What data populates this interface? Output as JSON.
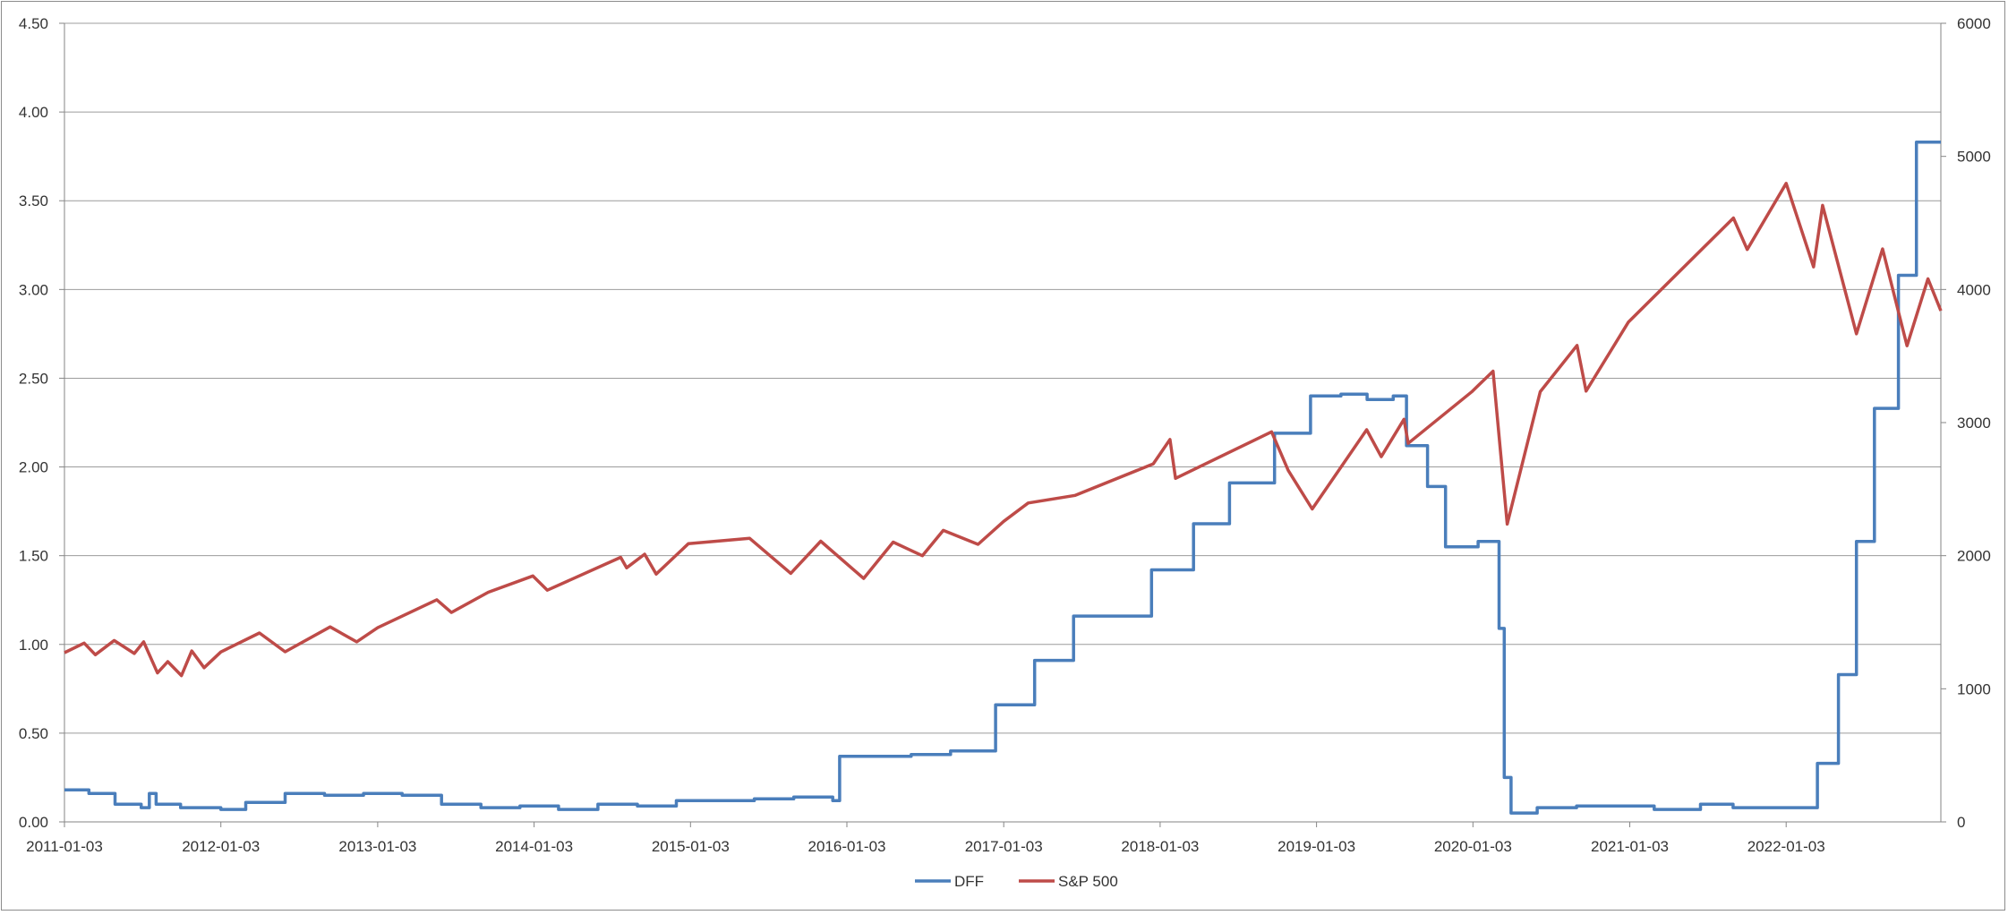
{
  "chart_data": {
    "type": "line",
    "title": "",
    "xlabel": "",
    "ylabel_left": "",
    "ylabel_right": "",
    "x_tick_labels": [
      "2011-01-03",
      "2012-01-03",
      "2013-01-03",
      "2014-01-03",
      "2015-01-03",
      "2016-01-03",
      "2017-01-03",
      "2018-01-03",
      "2019-01-03",
      "2020-01-03",
      "2021-01-03",
      "2022-01-03"
    ],
    "x_range": [
      "2011-01-03",
      "2022-12-30"
    ],
    "y_left": {
      "ticks": [
        "0.00",
        "0.50",
        "1.00",
        "1.50",
        "2.00",
        "2.50",
        "3.00",
        "3.50",
        "4.00",
        "4.50"
      ],
      "range": [
        0,
        4.5
      ]
    },
    "y_right": {
      "ticks": [
        "0",
        "1000",
        "2000",
        "3000",
        "4000",
        "5000",
        "6000"
      ],
      "range": [
        0,
        6000
      ]
    },
    "gridlines": "horizontal",
    "legend_position": "bottom",
    "series": [
      {
        "name": "DFF",
        "axis": "left",
        "color": "#4a7ebb",
        "step": true,
        "points": [
          [
            "2011-01-03",
            0.18
          ],
          [
            "2011-03-01",
            0.16
          ],
          [
            "2011-05-01",
            0.1
          ],
          [
            "2011-07-01",
            0.08
          ],
          [
            "2011-07-20",
            0.16
          ],
          [
            "2011-08-05",
            0.1
          ],
          [
            "2011-10-01",
            0.08
          ],
          [
            "2012-01-03",
            0.07
          ],
          [
            "2012-03-01",
            0.11
          ],
          [
            "2012-06-01",
            0.16
          ],
          [
            "2012-09-01",
            0.15
          ],
          [
            "2012-12-01",
            0.16
          ],
          [
            "2013-03-01",
            0.15
          ],
          [
            "2013-06-01",
            0.1
          ],
          [
            "2013-09-01",
            0.08
          ],
          [
            "2013-12-01",
            0.09
          ],
          [
            "2014-03-01",
            0.07
          ],
          [
            "2014-06-01",
            0.1
          ],
          [
            "2014-09-01",
            0.09
          ],
          [
            "2014-12-01",
            0.12
          ],
          [
            "2015-03-01",
            0.12
          ],
          [
            "2015-06-01",
            0.13
          ],
          [
            "2015-09-01",
            0.14
          ],
          [
            "2015-12-01",
            0.12
          ],
          [
            "2015-12-17",
            0.37
          ],
          [
            "2016-03-01",
            0.37
          ],
          [
            "2016-06-01",
            0.38
          ],
          [
            "2016-09-01",
            0.4
          ],
          [
            "2016-12-15",
            0.66
          ],
          [
            "2017-03-16",
            0.91
          ],
          [
            "2017-06-15",
            1.16
          ],
          [
            "2017-12-14",
            1.42
          ],
          [
            "2018-03-22",
            1.68
          ],
          [
            "2018-06-14",
            1.91
          ],
          [
            "2018-09-27",
            2.19
          ],
          [
            "2018-12-20",
            2.4
          ],
          [
            "2019-03-01",
            2.41
          ],
          [
            "2019-05-01",
            2.38
          ],
          [
            "2019-07-01",
            2.4
          ],
          [
            "2019-08-01",
            2.12
          ],
          [
            "2019-09-19",
            1.89
          ],
          [
            "2019-10-31",
            1.55
          ],
          [
            "2020-01-15",
            1.58
          ],
          [
            "2020-03-04",
            1.09
          ],
          [
            "2020-03-16",
            0.25
          ],
          [
            "2020-04-01",
            0.05
          ],
          [
            "2020-06-01",
            0.08
          ],
          [
            "2020-09-01",
            0.09
          ],
          [
            "2021-03-01",
            0.07
          ],
          [
            "2021-06-17",
            0.1
          ],
          [
            "2021-09-01",
            0.08
          ],
          [
            "2022-03-17",
            0.33
          ],
          [
            "2022-05-05",
            0.83
          ],
          [
            "2022-06-16",
            1.58
          ],
          [
            "2022-07-28",
            2.33
          ],
          [
            "2022-09-22",
            3.08
          ],
          [
            "2022-11-03",
            3.83
          ],
          [
            "2022-12-30",
            3.83
          ]
        ]
      },
      {
        "name": "S&P 500",
        "axis": "right",
        "color": "#be4b48",
        "step": false,
        "points": [
          [
            "2011-01-03",
            1271
          ],
          [
            "2011-02-18",
            1343
          ],
          [
            "2011-03-16",
            1256
          ],
          [
            "2011-04-29",
            1363
          ],
          [
            "2011-06-15",
            1265
          ],
          [
            "2011-07-07",
            1353
          ],
          [
            "2011-08-08",
            1119
          ],
          [
            "2011-09-01",
            1204
          ],
          [
            "2011-10-03",
            1099
          ],
          [
            "2011-10-27",
            1284
          ],
          [
            "2011-11-25",
            1158
          ],
          [
            "2012-01-03",
            1277
          ],
          [
            "2012-04-02",
            1419
          ],
          [
            "2012-06-01",
            1278
          ],
          [
            "2012-09-14",
            1465
          ],
          [
            "2012-11-15",
            1353
          ],
          [
            "2013-01-03",
            1459
          ],
          [
            "2013-05-21",
            1669
          ],
          [
            "2013-06-24",
            1573
          ],
          [
            "2013-09-18",
            1725
          ],
          [
            "2013-12-31",
            1848
          ],
          [
            "2014-02-03",
            1741
          ],
          [
            "2014-07-24",
            1988
          ],
          [
            "2014-08-07",
            1909
          ],
          [
            "2014-09-18",
            2011
          ],
          [
            "2014-10-15",
            1862
          ],
          [
            "2014-12-29",
            2090
          ],
          [
            "2015-05-21",
            2130
          ],
          [
            "2015-08-25",
            1867
          ],
          [
            "2015-11-03",
            2109
          ],
          [
            "2016-02-11",
            1829
          ],
          [
            "2016-04-20",
            2102
          ],
          [
            "2016-06-27",
            2000
          ],
          [
            "2016-08-15",
            2190
          ],
          [
            "2016-11-04",
            2085
          ],
          [
            "2017-01-03",
            2258
          ],
          [
            "2017-03-01",
            2396
          ],
          [
            "2017-06-19",
            2453
          ],
          [
            "2017-12-18",
            2690
          ],
          [
            "2018-01-26",
            2873
          ],
          [
            "2018-02-08",
            2581
          ],
          [
            "2018-09-20",
            2931
          ],
          [
            "2018-10-29",
            2641
          ],
          [
            "2018-12-24",
            2351
          ],
          [
            "2019-04-30",
            2946
          ],
          [
            "2019-06-03",
            2744
          ],
          [
            "2019-07-26",
            3025
          ],
          [
            "2019-08-05",
            2844
          ],
          [
            "2019-12-31",
            3231
          ],
          [
            "2020-02-19",
            3386
          ],
          [
            "2020-03-23",
            2237
          ],
          [
            "2020-06-08",
            3232
          ],
          [
            "2020-09-02",
            3580
          ],
          [
            "2020-09-23",
            3237
          ],
          [
            "2020-12-31",
            3756
          ],
          [
            "2021-09-02",
            4537
          ],
          [
            "2021-10-04",
            4300
          ],
          [
            "2022-01-03",
            4797
          ],
          [
            "2022-03-08",
            4170
          ],
          [
            "2022-03-29",
            4632
          ],
          [
            "2022-06-16",
            3667
          ],
          [
            "2022-08-16",
            4305
          ],
          [
            "2022-10-12",
            3577
          ],
          [
            "2022-11-30",
            4080
          ],
          [
            "2022-12-30",
            3840
          ]
        ]
      }
    ]
  }
}
